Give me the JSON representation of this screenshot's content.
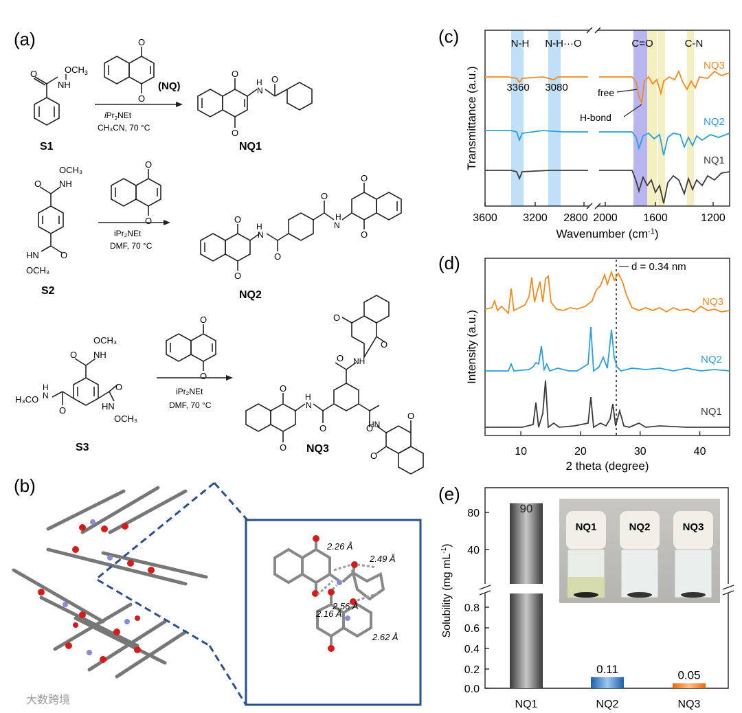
{
  "panel_a": {
    "label": "(a)",
    "row1": {
      "reactant_sub_me": "OCH",
      "reactant_sub_3": "3",
      "reactant_nh": "NH",
      "reagent_name": "(NQ)",
      "condition1_i": "i",
      "condition1_rest": "Pr",
      "condition1_sub": "2",
      "condition1_net": "NEt",
      "condition2": "CH₃CN, 70 °C",
      "reactant_label": "S1",
      "product_label": "NQ1",
      "product_nh": "N",
      "product_h": "H"
    },
    "row2": {
      "reactant_label": "S2",
      "product_label": "NQ2",
      "cond_base": "iPr₂NEt",
      "cond_solvent": "DMF, 70 °C",
      "och3_top": "OCH₃",
      "nh_top": "NH",
      "hn_bottom": "HN",
      "och3_bottom": "OCH₃",
      "product_h1": "H",
      "product_n1": "N",
      "product_h2": "H",
      "product_n2": "N"
    },
    "row3": {
      "reactant_label": "S3",
      "product_label": "NQ3",
      "cond_base": "iPr₂NEt",
      "cond_solvent": "DMF, 70 °C",
      "och3_top": "OCH₃",
      "nh_top": "NH",
      "h3co": "H₃CO",
      "hn_left": "H",
      "hn_left_n": "N",
      "hn_right": "HN",
      "och3_right": "OCH₃",
      "product_nh_top": "NH",
      "product_nh_left": "H",
      "product_n_left": "N",
      "product_nh_right": "HN"
    }
  },
  "panel_b": {
    "label": "(b)",
    "distances": [
      "2.26 Å",
      "2.49 Å",
      "2.16 Å",
      "2.56 Å",
      "2.62 Å"
    ]
  },
  "panel_c": {
    "label": "(c)",
    "chart_data": {
      "type": "line",
      "title": "",
      "xlabel": "Wavenumber (cm⁻¹)",
      "xlabel_main": "Wavenumber (cm",
      "xlabel_sup": "-1",
      "xlabel_close": ")",
      "ylabel": "Transmittance (a.u.)",
      "x_ticks": [
        "3600",
        "3200",
        "2800",
        "2000",
        "1600",
        "1200"
      ],
      "x_segments": [
        [
          3600,
          2800
        ],
        [
          2000,
          1000
        ]
      ],
      "band_labels": [
        "N-H",
        "N-H···O",
        "C=O",
        "C-N"
      ],
      "peak_labels": [
        "3360",
        "3080"
      ],
      "annotations": [
        "free",
        "H-bond"
      ],
      "series": [
        {
          "name": "NQ3",
          "color": "#f08a22"
        },
        {
          "name": "NQ2",
          "color": "#2a9fe0"
        },
        {
          "name": "NQ1",
          "color": "#3b3b3b"
        }
      ],
      "band_colors": {
        "nh": "#bfe0f7",
        "co": "#b9b5ee",
        "cn": "#f4efbe"
      }
    }
  },
  "panel_d": {
    "label": "(d)",
    "chart_data": {
      "type": "line",
      "xlabel": "2 theta (degree)",
      "ylabel": "Intensity (a.u.)",
      "xlim": [
        4,
        45
      ],
      "x_ticks": [
        10,
        20,
        30,
        40
      ],
      "reference_line_x": 26,
      "annotation": "d = 0.34 nm",
      "series": [
        {
          "name": "NQ3",
          "color": "#f08a22"
        },
        {
          "name": "NQ2",
          "color": "#2a9fe0"
        },
        {
          "name": "NQ1",
          "color": "#3b3b3b"
        }
      ]
    }
  },
  "panel_e": {
    "label": "(e)",
    "chart_data": {
      "type": "bar",
      "categories": [
        "NQ1",
        "NQ2",
        "NQ3"
      ],
      "values": [
        90,
        0.11,
        0.05
      ],
      "value_labels": [
        "90",
        "0.11",
        "0.05"
      ],
      "ylabel": "Solubility  (mg mL⁻¹)",
      "ylabel_main": "Solubility  (mg mL",
      "ylabel_sup": "-1",
      "ylabel_close": ")",
      "y_ticks_upper": [
        "80",
        "40"
      ],
      "y_ticks_lower": [
        "0.8",
        "0.6",
        "0.4",
        "0.2",
        "0.0"
      ],
      "broken_axis": true,
      "colors": [
        "#555555",
        "#2e7ec9",
        "#f08a22"
      ]
    },
    "vial_labels": [
      "NQ1",
      "NQ2",
      "NQ3"
    ]
  },
  "watermark": "大数跨境"
}
